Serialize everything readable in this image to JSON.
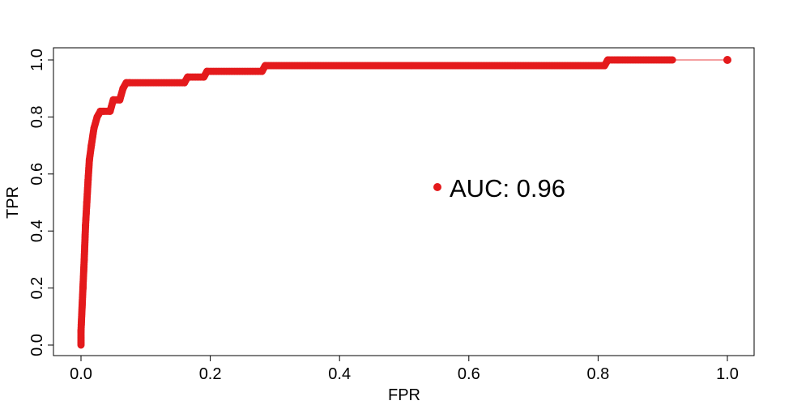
{
  "chart_data": {
    "type": "line",
    "xlabel": "FPR",
    "ylabel": "TPR",
    "xlim": [
      0,
      1
    ],
    "ylim": [
      0,
      1
    ],
    "x_ticks": [
      "0.0",
      "0.2",
      "0.4",
      "0.6",
      "0.8",
      "1.0"
    ],
    "y_ticks": [
      "0.0",
      "0.2",
      "0.4",
      "0.6",
      "0.8",
      "1.0"
    ],
    "grid": false,
    "legend": {
      "position": "center-right",
      "entries": [
        {
          "label": "AUC: 0.96",
          "color": "#e41a1c"
        }
      ]
    },
    "series": [
      {
        "color": "#e41a1c",
        "x": [
          0.0,
          0.0,
          0.003,
          0.005,
          0.007,
          0.009,
          0.011,
          0.013,
          0.016,
          0.02,
          0.025,
          0.03,
          0.035,
          0.045,
          0.05,
          0.06,
          0.065,
          0.07,
          0.075,
          0.16,
          0.165,
          0.19,
          0.195,
          0.28,
          0.285,
          0.81,
          0.815,
          0.915,
          1.0
        ],
        "y": [
          0.0,
          0.05,
          0.2,
          0.3,
          0.42,
          0.5,
          0.58,
          0.65,
          0.7,
          0.76,
          0.8,
          0.82,
          0.82,
          0.82,
          0.86,
          0.86,
          0.9,
          0.92,
          0.92,
          0.92,
          0.94,
          0.94,
          0.96,
          0.96,
          0.98,
          0.98,
          1.0,
          1.0,
          1.0
        ]
      }
    ]
  }
}
